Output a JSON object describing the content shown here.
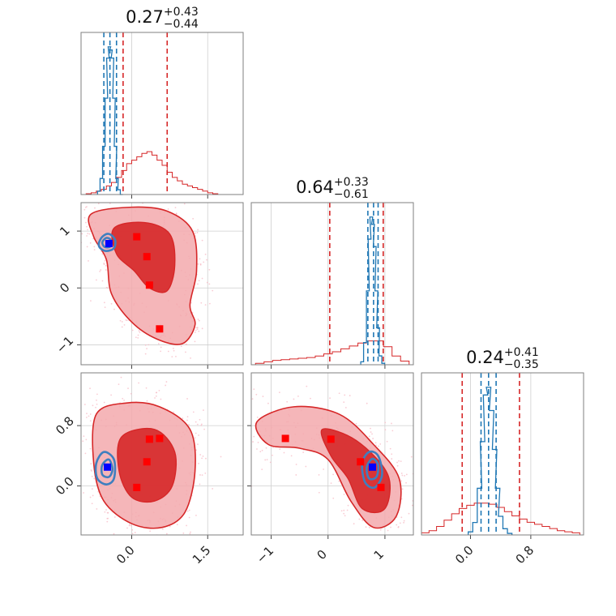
{
  "chart_data": {
    "type": "corner",
    "params": [
      {
        "title": {
          "median": "0.27",
          "plus": "+0.43",
          "minus": "−0.44"
        },
        "range": [
          -1.0,
          2.2
        ],
        "ticks": [
          0.0,
          1.5
        ],
        "tick_labels": [
          "0.0",
          "1.5"
        ],
        "red_quantiles": [
          -0.17,
          0.27,
          0.7
        ],
        "blue_quantiles": [
          -0.55,
          -0.43,
          -0.3
        ]
      },
      {
        "title": {
          "median": "0.64",
          "plus": "+0.33",
          "minus": "−0.61"
        },
        "range": [
          -1.35,
          1.5
        ],
        "ticks": [
          -1,
          0,
          1
        ],
        "tick_labels": [
          "−1",
          "0",
          "1"
        ],
        "red_quantiles": [
          0.03,
          0.64,
          0.97
        ],
        "blue_quantiles": [
          0.7,
          0.8,
          0.88
        ]
      },
      {
        "title": {
          "median": "0.24",
          "plus": "+0.41",
          "minus": "−0.35"
        },
        "range": [
          -0.65,
          1.5
        ],
        "ticks": [
          0.0,
          0.8
        ],
        "tick_labels": [
          "0.0",
          "0.8"
        ],
        "red_quantiles": [
          -0.11,
          0.24,
          0.65
        ],
        "blue_quantiles": [
          0.14,
          0.24,
          0.34
        ]
      }
    ],
    "histograms": [
      {
        "red": {
          "x": [
            -0.85,
            -0.75,
            -0.65,
            -0.55,
            -0.45,
            -0.35,
            -0.25,
            -0.15,
            -0.05,
            0.05,
            0.15,
            0.25,
            0.35,
            0.45,
            0.55,
            0.65,
            0.75,
            0.85,
            0.95,
            1.05,
            1.15,
            1.25,
            1.35,
            1.45,
            1.55,
            1.65
          ],
          "y": [
            0.005,
            0.01,
            0.02,
            0.03,
            0.05,
            0.07,
            0.1,
            0.14,
            0.18,
            0.2,
            0.22,
            0.24,
            0.25,
            0.23,
            0.2,
            0.17,
            0.13,
            0.1,
            0.08,
            0.06,
            0.05,
            0.04,
            0.03,
            0.02,
            0.01,
            0.005
          ]
        },
        "blue": {
          "x": [
            -0.65,
            -0.6,
            -0.55,
            -0.5,
            -0.47,
            -0.44,
            -0.41,
            -0.38,
            -0.35,
            -0.32,
            -0.29,
            -0.25,
            -0.2
          ],
          "y": [
            0.02,
            0.1,
            0.3,
            0.6,
            0.85,
            0.92,
            0.9,
            0.85,
            0.6,
            0.3,
            0.1,
            0.03,
            0.0
          ]
        }
      },
      {
        "red": {
          "x": [
            -1.2,
            -1.05,
            -0.9,
            -0.75,
            -0.6,
            -0.45,
            -0.3,
            -0.15,
            0.0,
            0.15,
            0.3,
            0.45,
            0.6,
            0.75,
            0.9,
            1.05,
            1.2,
            1.35
          ],
          "y": [
            0.02,
            0.04,
            0.06,
            0.07,
            0.08,
            0.09,
            0.1,
            0.12,
            0.15,
            0.18,
            0.22,
            0.26,
            0.3,
            0.33,
            0.33,
            0.25,
            0.12,
            0.05
          ]
        },
        "blue": {
          "x": [
            0.6,
            0.65,
            0.7,
            0.73,
            0.76,
            0.79,
            0.82,
            0.85,
            0.88,
            0.92,
            0.97
          ],
          "y": [
            0.02,
            0.15,
            0.5,
            0.85,
            1.0,
            0.95,
            0.8,
            0.5,
            0.25,
            0.06,
            0.01
          ]
        }
      },
      {
        "red": {
          "x": [
            -0.6,
            -0.5,
            -0.4,
            -0.3,
            -0.2,
            -0.1,
            0.0,
            0.1,
            0.2,
            0.3,
            0.4,
            0.5,
            0.6,
            0.7,
            0.8,
            0.9,
            1.0,
            1.1,
            1.2,
            1.3,
            1.4
          ],
          "y": [
            0.02,
            0.04,
            0.08,
            0.14,
            0.2,
            0.25,
            0.28,
            0.3,
            0.3,
            0.29,
            0.26,
            0.22,
            0.18,
            0.15,
            0.12,
            0.1,
            0.08,
            0.06,
            0.04,
            0.03,
            0.02
          ]
        },
        "blue": {
          "x": [
            0.0,
            0.06,
            0.12,
            0.16,
            0.2,
            0.24,
            0.28,
            0.32,
            0.36,
            0.4,
            0.46,
            0.52
          ],
          "y": [
            0.02,
            0.08,
            0.3,
            0.6,
            0.9,
            0.95,
            0.8,
            0.55,
            0.3,
            0.12,
            0.04,
            0.01
          ]
        }
      }
    ],
    "contours": [
      {
        "xy": [
          0,
          1
        ],
        "red_outer": [
          [
            -0.8,
            1.3
          ],
          [
            0.0,
            1.42
          ],
          [
            0.7,
            1.35
          ],
          [
            1.2,
            1.0
          ],
          [
            1.28,
            0.3
          ],
          [
            1.15,
            -0.3
          ],
          [
            1.25,
            -0.65
          ],
          [
            1.0,
            -0.98
          ],
          [
            0.5,
            -0.9
          ],
          [
            0.0,
            -0.6
          ],
          [
            -0.4,
            -0.1
          ],
          [
            -0.5,
            0.5
          ],
          [
            -0.75,
            0.9
          ]
        ],
        "red_inner": [
          [
            -0.35,
            1.05
          ],
          [
            0.25,
            1.15
          ],
          [
            0.75,
            0.95
          ],
          [
            0.85,
            0.4
          ],
          [
            0.7,
            -0.05
          ],
          [
            0.35,
            0.0
          ],
          [
            0.05,
            0.3
          ],
          [
            -0.3,
            0.6
          ]
        ],
        "blue": [
          [
            [
              -0.65,
              0.78
            ],
            [
              -0.58,
              0.9
            ],
            [
              -0.45,
              0.95
            ],
            [
              -0.33,
              0.85
            ],
            [
              -0.35,
              0.7
            ],
            [
              -0.5,
              0.65
            ],
            [
              -0.62,
              0.7
            ]
          ],
          [
            [
              -0.58,
              0.8
            ],
            [
              -0.5,
              0.88
            ],
            [
              -0.41,
              0.84
            ],
            [
              -0.42,
              0.73
            ],
            [
              -0.53,
              0.72
            ]
          ]
        ],
        "red_markers": [
          [
            0.1,
            0.9
          ],
          [
            0.3,
            0.55
          ],
          [
            0.35,
            0.05
          ],
          [
            0.55,
            -0.72
          ]
        ],
        "blue_marker": [
          -0.45,
          0.78
        ]
      },
      {
        "xy": [
          0,
          2
        ],
        "red_outer": [
          [
            -0.7,
            0.95
          ],
          [
            -0.1,
            1.1
          ],
          [
            0.55,
            1.05
          ],
          [
            1.15,
            0.75
          ],
          [
            1.25,
            0.2
          ],
          [
            1.05,
            -0.35
          ],
          [
            0.6,
            -0.55
          ],
          [
            0.0,
            -0.5
          ],
          [
            -0.55,
            -0.2
          ],
          [
            -0.75,
            0.3
          ]
        ],
        "red_inner": [
          [
            -0.2,
            0.65
          ],
          [
            0.45,
            0.75
          ],
          [
            0.85,
            0.45
          ],
          [
            0.8,
            0.0
          ],
          [
            0.45,
            -0.2
          ],
          [
            0.0,
            -0.15
          ],
          [
            -0.25,
            0.2
          ]
        ],
        "blue": [
          [
            [
              -0.7,
              0.3
            ],
            [
              -0.55,
              0.45
            ],
            [
              -0.35,
              0.35
            ],
            [
              -0.35,
              0.1
            ],
            [
              -0.5,
              0.02
            ],
            [
              -0.68,
              0.1
            ]
          ],
          [
            [
              -0.58,
              0.28
            ],
            [
              -0.45,
              0.35
            ],
            [
              -0.38,
              0.22
            ],
            [
              -0.45,
              0.12
            ],
            [
              -0.58,
              0.15
            ]
          ]
        ],
        "red_markers": [
          [
            0.35,
            0.62
          ],
          [
            0.55,
            0.63
          ],
          [
            0.3,
            0.32
          ],
          [
            0.1,
            -0.02
          ]
        ],
        "blue_marker": [
          -0.48,
          0.25
        ]
      },
      {
        "xy": [
          1,
          2
        ],
        "red_outer": [
          [
            -1.25,
            0.85
          ],
          [
            -0.6,
            1.05
          ],
          [
            0.2,
            0.95
          ],
          [
            0.8,
            0.55
          ],
          [
            1.25,
            0.1
          ],
          [
            1.2,
            -0.4
          ],
          [
            0.8,
            -0.55
          ],
          [
            0.4,
            -0.2
          ],
          [
            0.0,
            0.35
          ],
          [
            -0.5,
            0.5
          ],
          [
            -1.05,
            0.55
          ]
        ],
        "red_inner": [
          [
            -0.1,
            0.75
          ],
          [
            0.5,
            0.6
          ],
          [
            1.05,
            0.15
          ],
          [
            1.0,
            -0.3
          ],
          [
            0.6,
            -0.3
          ],
          [
            0.35,
            0.1
          ],
          [
            0.05,
            0.4
          ]
        ],
        "blue": [
          [
            [
              0.6,
              0.3
            ],
            [
              0.72,
              0.45
            ],
            [
              0.88,
              0.4
            ],
            [
              0.95,
              0.15
            ],
            [
              0.82,
              -0.02
            ],
            [
              0.65,
              0.05
            ]
          ],
          [
            [
              0.68,
              0.25
            ],
            [
              0.78,
              0.36
            ],
            [
              0.88,
              0.28
            ],
            [
              0.85,
              0.12
            ],
            [
              0.72,
              0.1
            ]
          ]
        ],
        "red_markers": [
          [
            -0.75,
            0.63
          ],
          [
            0.05,
            0.62
          ],
          [
            0.57,
            0.32
          ],
          [
            0.93,
            -0.02
          ]
        ],
        "blue_marker": [
          0.78,
          0.25
        ]
      }
    ],
    "xlabel": "",
    "ylabel": "",
    "title": "",
    "grid": true,
    "colors": {
      "red": "#d62728",
      "blue": "#1f77b4",
      "red_light": "#f3a9ad",
      "blue_contour": "#3f7fbf",
      "marker_red": "#ff0000",
      "marker_blue": "#0000ff"
    }
  }
}
